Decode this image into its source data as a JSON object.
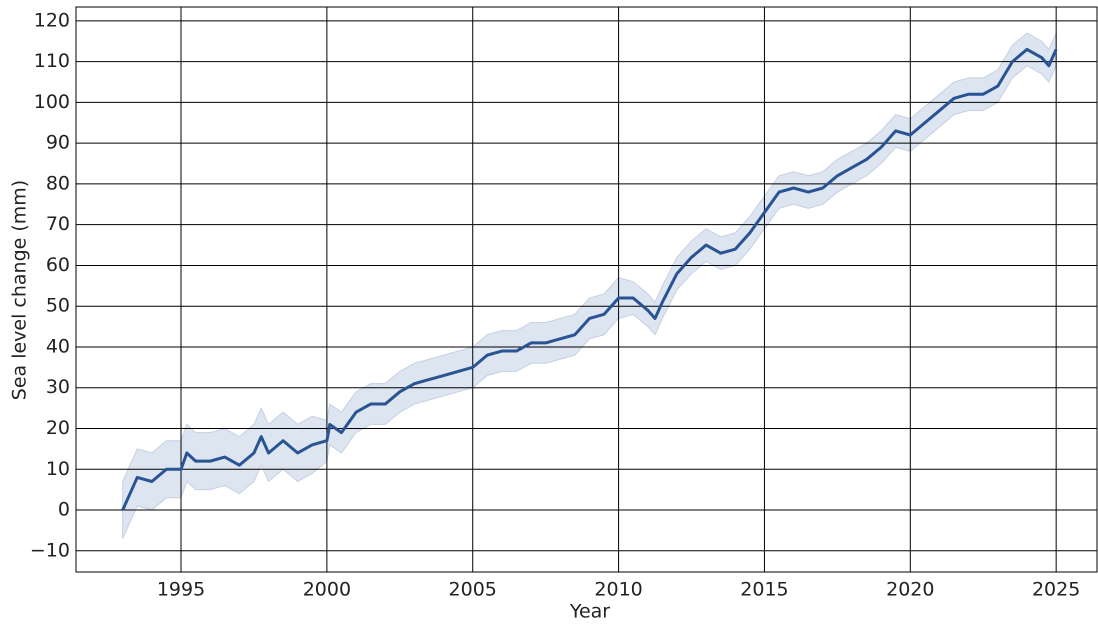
{
  "chart_data": {
    "type": "line",
    "xlabel": "Year",
    "ylabel": "Sea level change (mm)",
    "color": "#2a5394",
    "band_color": "#dde5f1",
    "grid": true,
    "xlim": [
      1991.4,
      2026.4
    ],
    "xticks": [
      1995,
      2000,
      2005,
      2010,
      2015,
      2020,
      2025
    ],
    "ylim": [
      -15.2,
      123.4
    ],
    "yticks": [
      {
        "value": -10,
        "label": "−10"
      },
      0,
      10,
      20,
      30,
      40,
      50,
      60,
      70,
      80,
      90,
      100,
      110,
      120
    ],
    "x": [
      1993,
      1993.5,
      1994,
      1994.5,
      1995,
      1995.2,
      1995.5,
      1996,
      1996.5,
      1997,
      1997.5,
      1997.75,
      1998,
      1998.5,
      1999,
      1999.5,
      2000,
      2000.1,
      2000.5,
      2001,
      2001.5,
      2002,
      2002.5,
      2003,
      2003.5,
      2004,
      2004.5,
      2005,
      2005.5,
      2006,
      2006.5,
      2007,
      2007.5,
      2008,
      2008.5,
      2009,
      2009.5,
      2010,
      2010.5,
      2011,
      2011.25,
      2011.5,
      2012,
      2012.5,
      2013,
      2013.5,
      2014,
      2014.5,
      2015,
      2015.5,
      2016,
      2016.5,
      2017,
      2017.5,
      2018,
      2018.5,
      2019,
      2019.5,
      2020,
      2020.5,
      2021,
      2021.5,
      2022,
      2022.5,
      2023,
      2023.5,
      2024,
      2024.5,
      2024.75,
      2025
    ],
    "values": [
      0,
      8,
      7,
      10,
      10,
      14,
      12,
      12,
      13,
      11,
      14,
      18,
      14,
      17,
      14,
      16,
      17,
      21,
      19,
      24,
      26,
      26,
      29,
      31,
      32,
      33,
      34,
      35,
      38,
      39,
      39,
      41,
      41,
      42,
      43,
      47,
      48,
      52,
      52,
      49,
      47,
      51,
      58,
      62,
      65,
      63,
      64,
      68,
      73,
      78,
      79,
      78,
      79,
      82,
      84,
      86,
      89,
      93,
      92,
      95,
      98,
      101,
      102,
      102,
      104,
      110,
      113,
      111,
      109,
      113
    ],
    "lower": [
      -7,
      1,
      0,
      3,
      3,
      7,
      5,
      5,
      6,
      4,
      7,
      11,
      7,
      10,
      7,
      9,
      12,
      16,
      14,
      19,
      21,
      21,
      24,
      26,
      27,
      28,
      29,
      30,
      33,
      34,
      34,
      36,
      36,
      37,
      38,
      42,
      43,
      47,
      48,
      45,
      43,
      47,
      54,
      58,
      61,
      59,
      60,
      64,
      69,
      74,
      75,
      74,
      75,
      78,
      80,
      82,
      85,
      89,
      88,
      91,
      94,
      97,
      98,
      98,
      100,
      106,
      109,
      107,
      105,
      109
    ],
    "upper": [
      7,
      15,
      14,
      17,
      17,
      21,
      19,
      19,
      20,
      18,
      21,
      25,
      21,
      24,
      21,
      23,
      22,
      26,
      24,
      29,
      31,
      31,
      34,
      36,
      37,
      38,
      39,
      40,
      43,
      44,
      44,
      46,
      46,
      47,
      48,
      52,
      53,
      57,
      56,
      53,
      51,
      55,
      62,
      66,
      69,
      67,
      68,
      72,
      77,
      82,
      83,
      82,
      83,
      86,
      88,
      90,
      93,
      97,
      96,
      99,
      102,
      105,
      106,
      106,
      108,
      114,
      117,
      115,
      113,
      117
    ]
  }
}
